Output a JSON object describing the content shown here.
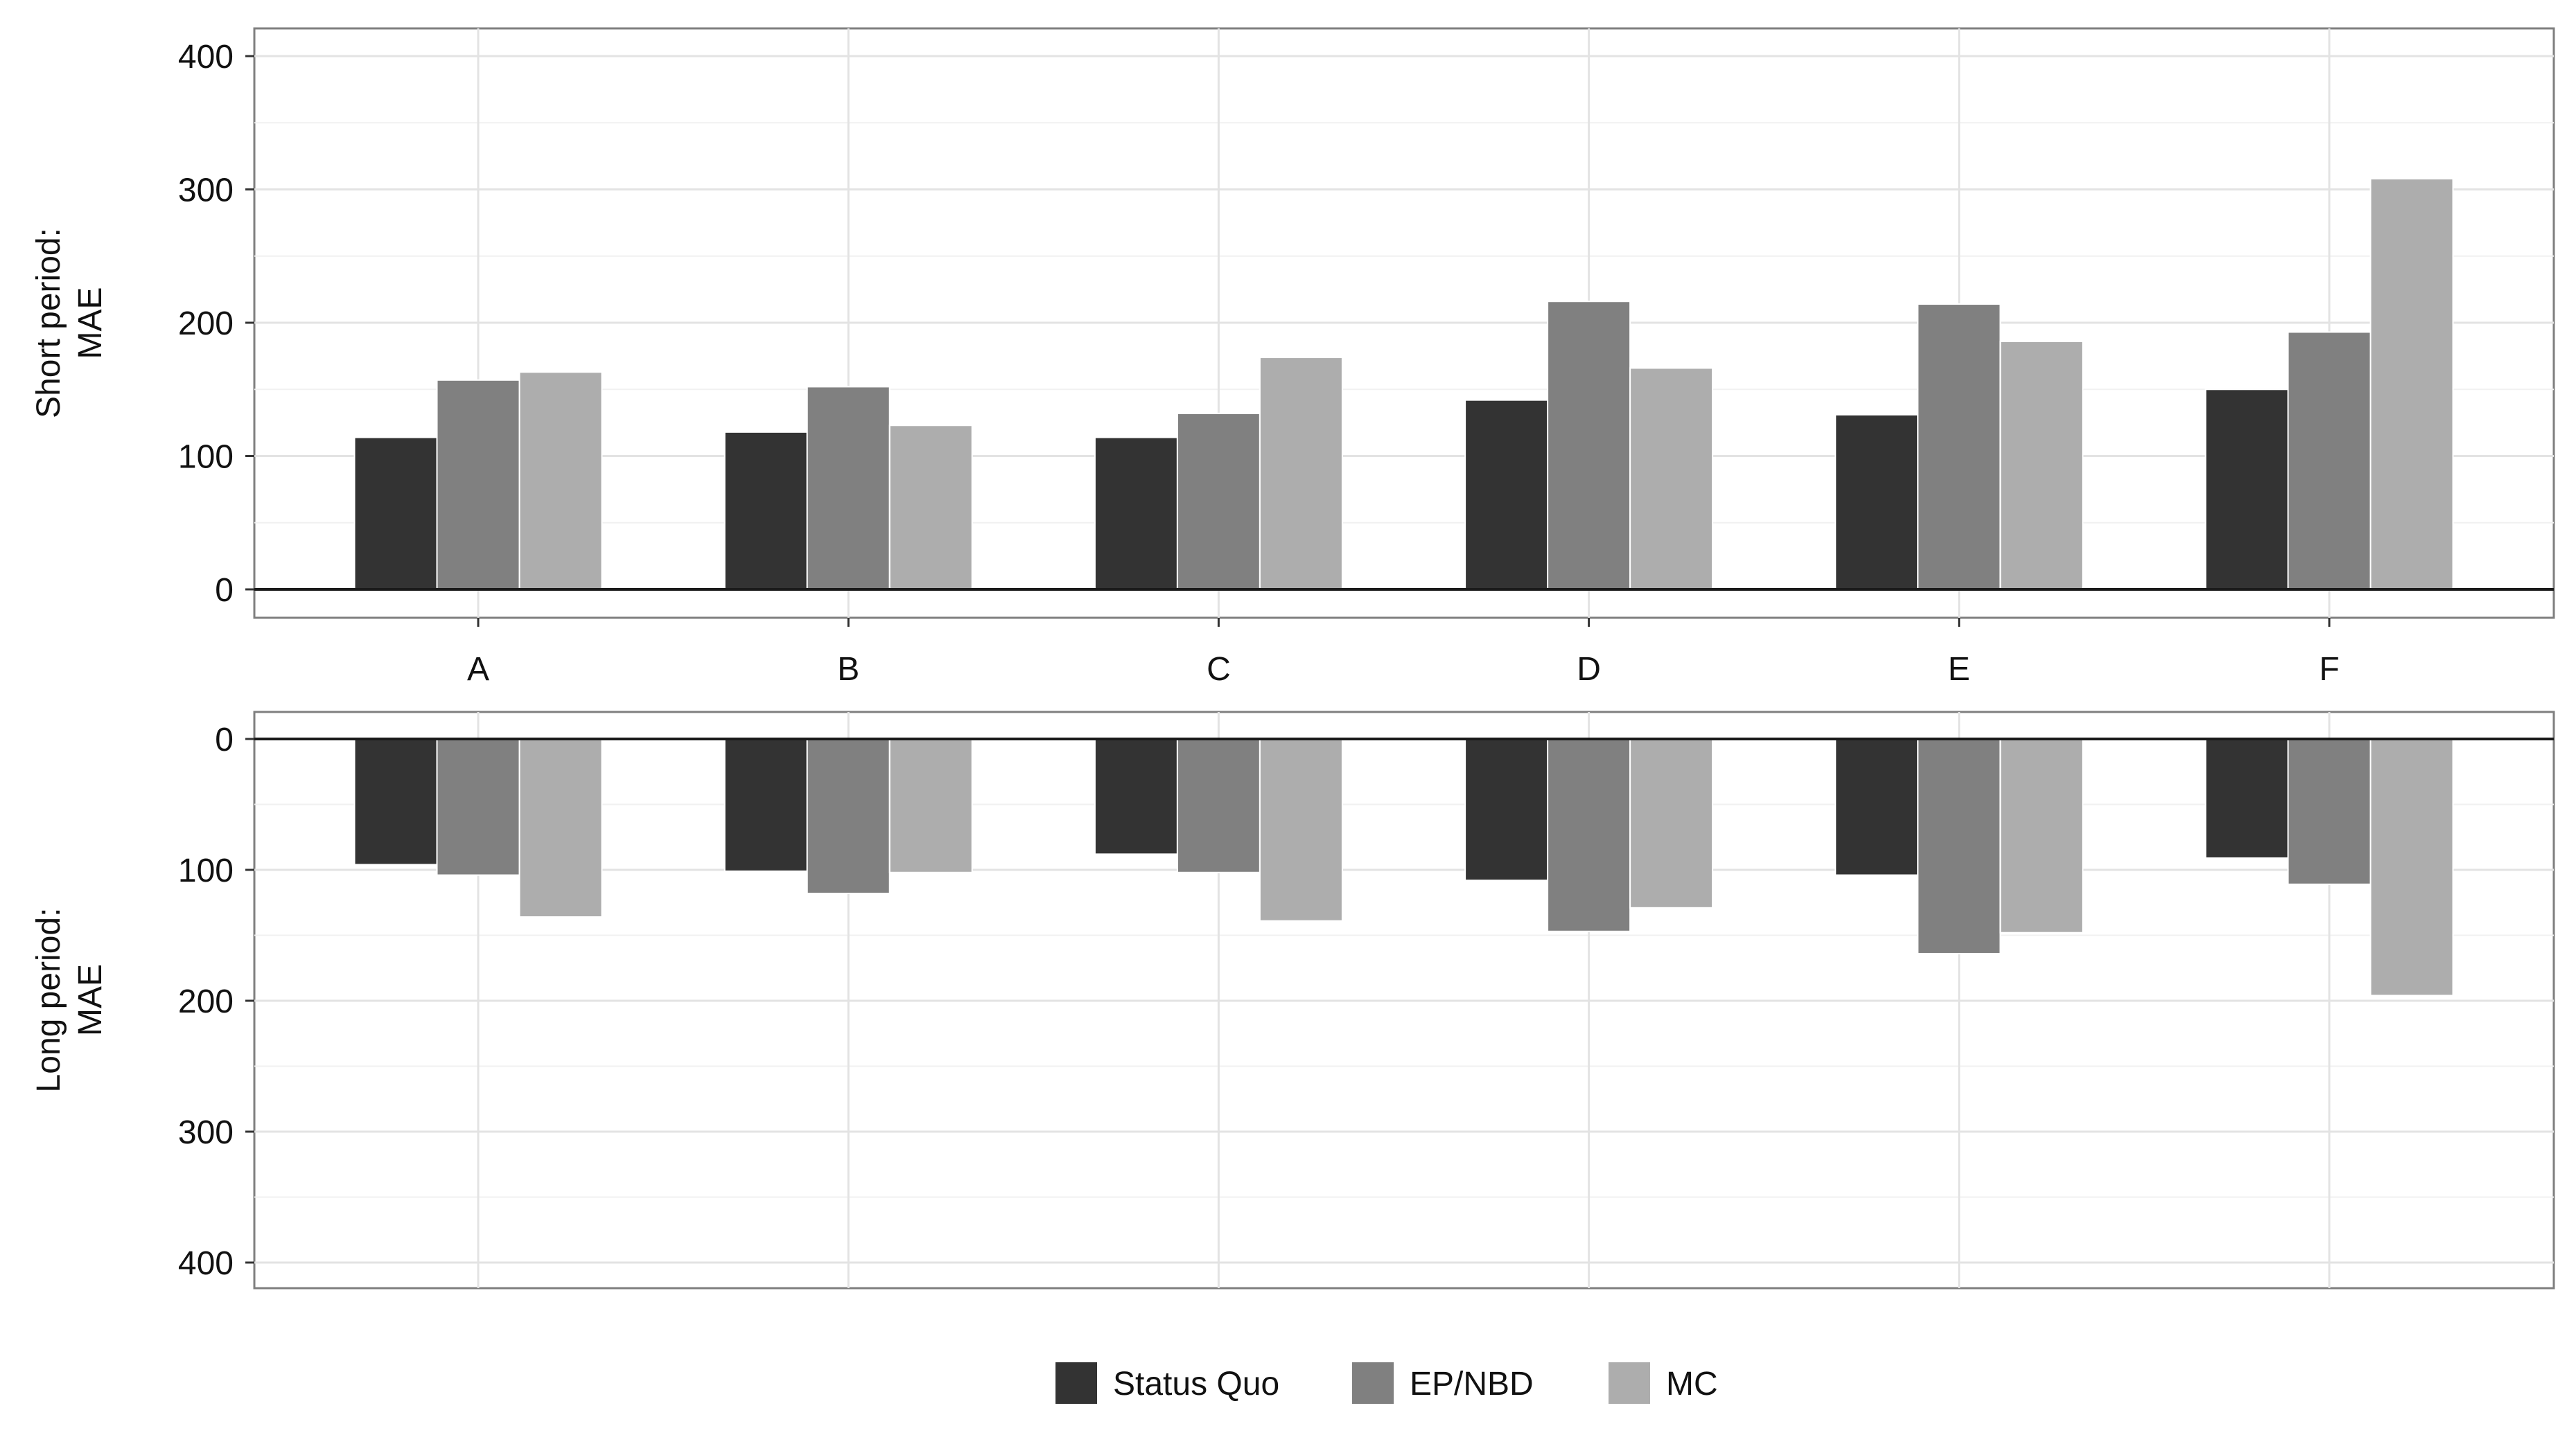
{
  "chart_data": {
    "type": "bar",
    "categories": [
      "A",
      "B",
      "C",
      "D",
      "E",
      "F"
    ],
    "series": [
      {
        "name": "Status Quo",
        "color": "#333333"
      },
      {
        "name": "EP/NBD",
        "color": "#808080"
      },
      {
        "name": "MC",
        "color": "#adadad"
      }
    ],
    "panels": [
      {
        "ylabel_line1": "Short period:",
        "ylabel_line2": "MAE",
        "direction": "up",
        "ylim": [
          0,
          400
        ],
        "yticks": [
          0,
          100,
          200,
          300,
          400
        ],
        "values": [
          [
            114,
            118,
            114,
            142,
            131,
            150
          ],
          [
            157,
            152,
            132,
            216,
            214,
            193
          ],
          [
            163,
            123,
            174,
            166,
            186,
            308
          ]
        ]
      },
      {
        "ylabel_line1": "Long period:",
        "ylabel_line2": "MAE",
        "direction": "down",
        "ylim": [
          0,
          400
        ],
        "yticks": [
          0,
          100,
          200,
          300,
          400
        ],
        "values": [
          [
            96,
            101,
            88,
            108,
            104,
            91
          ],
          [
            104,
            118,
            102,
            147,
            164,
            111
          ],
          [
            136,
            102,
            139,
            129,
            148,
            196
          ]
        ]
      }
    ],
    "grid": true,
    "legend_position": "bottom"
  }
}
